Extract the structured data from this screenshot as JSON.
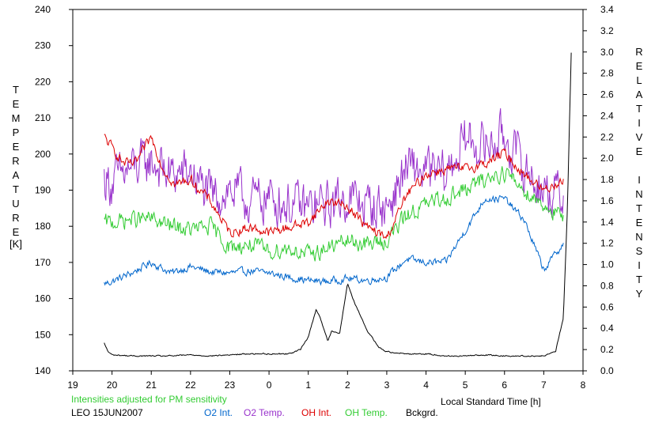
{
  "chart_data": {
    "type": "line",
    "xlabel": "Local Standard Time [h]",
    "ylabel_left": "TEMPERATURE",
    "ylabel_left_unit": "[K]",
    "ylabel_right": "RELATIVE INTENSITY",
    "xlim": [
      19,
      8
    ],
    "x_ticks": [
      19,
      20,
      21,
      22,
      23,
      0,
      1,
      2,
      3,
      4,
      5,
      6,
      7,
      8
    ],
    "x_tick_labels": [
      "19",
      "20",
      "21",
      "22",
      "23",
      "0",
      "1",
      "2",
      "3",
      "4",
      "5",
      "6",
      "7",
      "8"
    ],
    "ylim_left": [
      140,
      240
    ],
    "y_left_ticks": [
      "140",
      "150",
      "160",
      "170",
      "180",
      "190",
      "200",
      "210",
      "220",
      "230",
      "240"
    ],
    "ylim_right": [
      0.0,
      3.4
    ],
    "y_right_ticks": [
      "0.0",
      "0.2",
      "0.4",
      "0.6",
      "0.8",
      "1.0",
      "1.2",
      "1.4",
      "1.6",
      "1.8",
      "2.0",
      "2.2",
      "2.4",
      "2.6",
      "2.8",
      "3.0",
      "3.2",
      "3.4"
    ],
    "grid": false,
    "note": "Intensities adjusted for PM sensitivity",
    "station_label": "LEO 15JUN2007",
    "series": [
      {
        "name": "O2 Int.",
        "color": "#0066cc",
        "axis": "right",
        "x": [
          19.8,
          20.0,
          20.5,
          21.0,
          21.5,
          22.0,
          22.5,
          23.0,
          23.5,
          24.0,
          24.5,
          25.0,
          25.5,
          26.0,
          26.5,
          27.0,
          27.5,
          28.0,
          28.5,
          29.0,
          29.5,
          30.0,
          30.5,
          31.0,
          31.5
        ],
        "values": [
          0.82,
          0.84,
          0.92,
          1.02,
          0.92,
          0.98,
          0.93,
          0.92,
          0.94,
          0.92,
          0.88,
          0.85,
          0.84,
          0.87,
          0.85,
          0.88,
          1.05,
          1.02,
          1.02,
          1.32,
          1.62,
          1.62,
          1.42,
          0.95,
          1.2
        ]
      },
      {
        "name": "O2 Temp.",
        "color": "#9933cc",
        "axis": "left",
        "x": [
          19.8,
          20.0,
          20.5,
          21.0,
          21.5,
          22.0,
          22.5,
          23.0,
          23.5,
          24.0,
          24.5,
          25.0,
          25.5,
          26.0,
          26.5,
          27.0,
          27.5,
          28.0,
          28.5,
          29.0,
          29.5,
          30.0,
          30.5,
          31.0,
          31.5
        ],
        "values": [
          193,
          192,
          196,
          198,
          194,
          195,
          188,
          190,
          187,
          188,
          186,
          185,
          186,
          188,
          186,
          185,
          196,
          195,
          194,
          204,
          202,
          205,
          196,
          190,
          188
        ]
      },
      {
        "name": "OH Int.",
        "color": "#dd0000",
        "axis": "right",
        "x": [
          19.8,
          20.0,
          20.3,
          20.6,
          21.0,
          21.3,
          21.6,
          22.0,
          22.5,
          23.0,
          23.5,
          24.0,
          24.5,
          25.0,
          25.5,
          26.0,
          26.5,
          27.0,
          27.5,
          28.0,
          28.5,
          29.0,
          29.5,
          30.0,
          30.5,
          31.0,
          31.5
        ],
        "values": [
          2.2,
          2.1,
          1.95,
          1.95,
          2.2,
          1.9,
          1.75,
          1.8,
          1.6,
          1.3,
          1.35,
          1.3,
          1.35,
          1.4,
          1.6,
          1.55,
          1.35,
          1.25,
          1.65,
          1.85,
          1.9,
          1.9,
          1.95,
          2.05,
          1.85,
          1.7,
          1.8
        ]
      },
      {
        "name": "OH Temp.",
        "color": "#33cc33",
        "axis": "left",
        "x": [
          19.8,
          20.0,
          20.5,
          21.0,
          21.5,
          22.0,
          22.5,
          23.0,
          23.5,
          24.0,
          24.5,
          25.0,
          25.5,
          26.0,
          26.5,
          27.0,
          27.5,
          28.0,
          28.5,
          29.0,
          29.5,
          30.0,
          30.5,
          31.0,
          31.5
        ],
        "values": [
          181,
          181,
          182,
          182,
          180,
          179,
          180,
          174,
          175,
          173,
          174,
          172,
          174,
          176,
          175,
          176,
          183,
          186,
          188,
          190,
          193,
          195,
          190,
          186,
          182
        ]
      },
      {
        "name": "Bckgrd.",
        "color": "#000000",
        "axis": "right",
        "x": [
          19.8,
          19.9,
          20.0,
          20.5,
          21.0,
          21.5,
          22.0,
          22.5,
          23.0,
          23.5,
          24.0,
          24.5,
          24.8,
          25.0,
          25.2,
          25.3,
          25.5,
          25.6,
          25.8,
          26.0,
          26.2,
          26.5,
          26.8,
          27.0,
          27.5,
          28.0,
          28.5,
          29.0,
          29.5,
          30.0,
          30.5,
          31.0,
          31.3,
          31.5,
          31.6,
          31.7
        ],
        "values": [
          0.26,
          0.18,
          0.15,
          0.14,
          0.14,
          0.14,
          0.15,
          0.14,
          0.15,
          0.16,
          0.16,
          0.16,
          0.2,
          0.32,
          0.58,
          0.5,
          0.28,
          0.38,
          0.35,
          0.82,
          0.62,
          0.38,
          0.22,
          0.18,
          0.16,
          0.16,
          0.14,
          0.14,
          0.15,
          0.14,
          0.14,
          0.14,
          0.18,
          0.5,
          1.5,
          3.0
        ]
      }
    ]
  },
  "colors": {
    "background": "#ffffff",
    "axis": "#000000",
    "note": "#33cc33"
  }
}
